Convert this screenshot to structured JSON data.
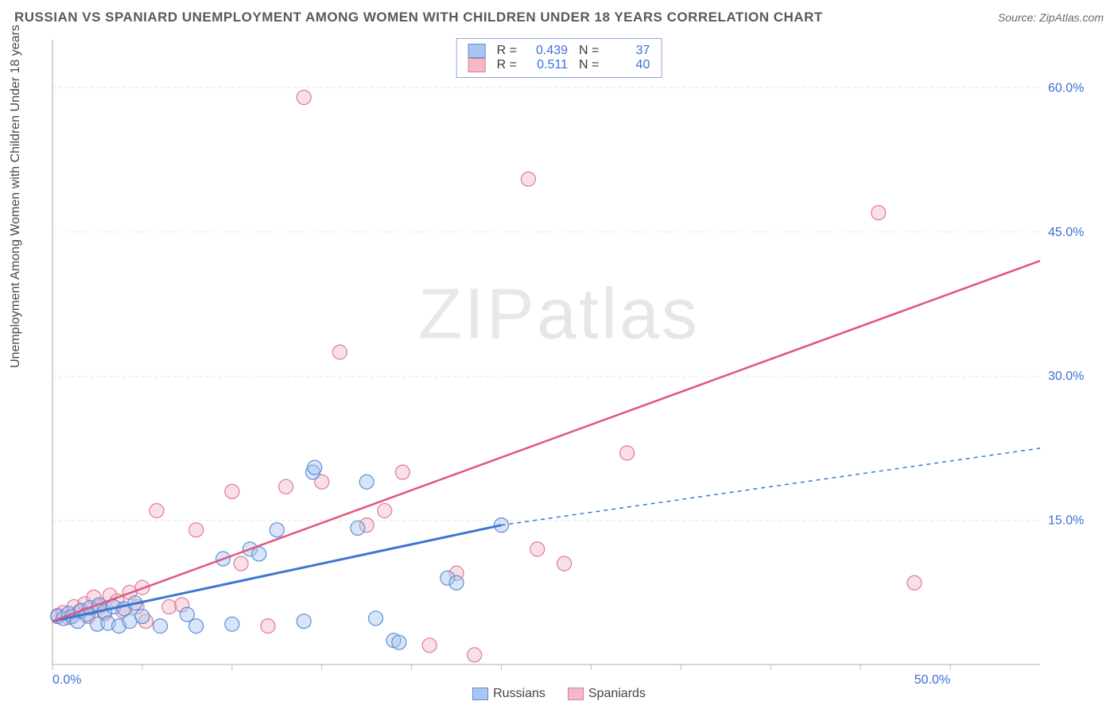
{
  "header": {
    "title": "RUSSIAN VS SPANIARD UNEMPLOYMENT AMONG WOMEN WITH CHILDREN UNDER 18 YEARS CORRELATION CHART",
    "source": "Source: ZipAtlas.com"
  },
  "watermark": "ZIPatlas",
  "chart": {
    "type": "scatter",
    "ylabel": "Unemployment Among Women with Children Under 18 years",
    "xlim": [
      0,
      55
    ],
    "ylim": [
      0,
      65
    ],
    "xticks": [
      0,
      5,
      10,
      15,
      20,
      25,
      30,
      35,
      40,
      45,
      50
    ],
    "xtick_label_first": "0.0%",
    "xtick_label_last": "50.0%",
    "ygrid": [
      0,
      15,
      30,
      45,
      60
    ],
    "ytick_labels": [
      "15.0%",
      "30.0%",
      "45.0%",
      "60.0%"
    ],
    "grid_color": "#e2e2e2",
    "axis_color": "#bdbdbd",
    "background_color": "#ffffff",
    "tick_label_color": "#3a6fd8",
    "tick_label_fontsize": 16,
    "marker_radius": 9,
    "marker_opacity": 0.45,
    "series": [
      {
        "name": "Russians",
        "color_fill": "#a8c6ef",
        "color_stroke": "#5a8fd6",
        "R": "0.439",
        "N": "37",
        "trend": {
          "x0": 0,
          "y0": 4.5,
          "x1": 25,
          "y1": 14.5,
          "dash_x1": 55,
          "dash_y1": 22.5,
          "color": "#3a78d0",
          "width": 3
        },
        "points": [
          [
            0.3,
            5.0
          ],
          [
            0.6,
            4.8
          ],
          [
            0.9,
            5.3
          ],
          [
            1.1,
            5.0
          ],
          [
            1.4,
            4.5
          ],
          [
            1.6,
            5.6
          ],
          [
            1.9,
            5.2
          ],
          [
            2.1,
            5.9
          ],
          [
            2.5,
            4.2
          ],
          [
            2.6,
            6.2
          ],
          [
            2.9,
            5.5
          ],
          [
            3.1,
            4.3
          ],
          [
            3.4,
            6.0
          ],
          [
            3.7,
            4.0
          ],
          [
            4.0,
            5.8
          ],
          [
            4.3,
            4.5
          ],
          [
            4.6,
            6.4
          ],
          [
            5.0,
            5.0
          ],
          [
            6.0,
            4.0
          ],
          [
            7.5,
            5.2
          ],
          [
            8.0,
            4.0
          ],
          [
            9.5,
            11.0
          ],
          [
            10.0,
            4.2
          ],
          [
            11.0,
            12.0
          ],
          [
            11.5,
            11.5
          ],
          [
            12.5,
            14.0
          ],
          [
            14.0,
            4.5
          ],
          [
            14.5,
            20.0
          ],
          [
            14.6,
            20.5
          ],
          [
            17.0,
            14.2
          ],
          [
            17.5,
            19.0
          ],
          [
            18.0,
            4.8
          ],
          [
            19.0,
            2.5
          ],
          [
            19.3,
            2.3
          ],
          [
            22.0,
            9.0
          ],
          [
            22.5,
            8.5
          ],
          [
            25.0,
            14.5
          ]
        ]
      },
      {
        "name": "Spaniards",
        "color_fill": "#f2b9c7",
        "color_stroke": "#e07a9a",
        "R": "0.511",
        "N": "40",
        "trend": {
          "x0": 0,
          "y0": 4.5,
          "x1": 55,
          "y1": 42.0,
          "color": "#e0557f",
          "width": 2.5
        },
        "points": [
          [
            0.3,
            5.1
          ],
          [
            0.6,
            5.4
          ],
          [
            0.9,
            4.9
          ],
          [
            1.2,
            6.0
          ],
          [
            1.5,
            5.5
          ],
          [
            1.8,
            6.3
          ],
          [
            2.0,
            5.0
          ],
          [
            2.3,
            7.0
          ],
          [
            2.6,
            6.0
          ],
          [
            2.9,
            5.3
          ],
          [
            3.2,
            7.2
          ],
          [
            3.6,
            6.6
          ],
          [
            3.9,
            5.6
          ],
          [
            4.3,
            7.5
          ],
          [
            4.7,
            6.0
          ],
          [
            5.2,
            4.5
          ],
          [
            5.8,
            16.0
          ],
          [
            6.5,
            6.0
          ],
          [
            7.2,
            6.2
          ],
          [
            8.0,
            14.0
          ],
          [
            10.0,
            18.0
          ],
          [
            10.5,
            10.5
          ],
          [
            12.0,
            4.0
          ],
          [
            13.0,
            18.5
          ],
          [
            14.0,
            59.0
          ],
          [
            15.0,
            19.0
          ],
          [
            16.0,
            32.5
          ],
          [
            17.5,
            14.5
          ],
          [
            18.5,
            16.0
          ],
          [
            19.5,
            20.0
          ],
          [
            21.0,
            2.0
          ],
          [
            22.5,
            9.5
          ],
          [
            23.5,
            1.0
          ],
          [
            26.5,
            50.5
          ],
          [
            27.0,
            12.0
          ],
          [
            28.5,
            10.5
          ],
          [
            32.0,
            22.0
          ],
          [
            46.0,
            47.0
          ],
          [
            48.0,
            8.5
          ],
          [
            5.0,
            8.0
          ]
        ]
      }
    ],
    "legend_bottom": [
      {
        "label": "Russians",
        "fill": "#a8c6ef",
        "stroke": "#5a8fd6"
      },
      {
        "label": "Spaniards",
        "fill": "#f2b9c7",
        "stroke": "#e07a9a"
      }
    ]
  }
}
